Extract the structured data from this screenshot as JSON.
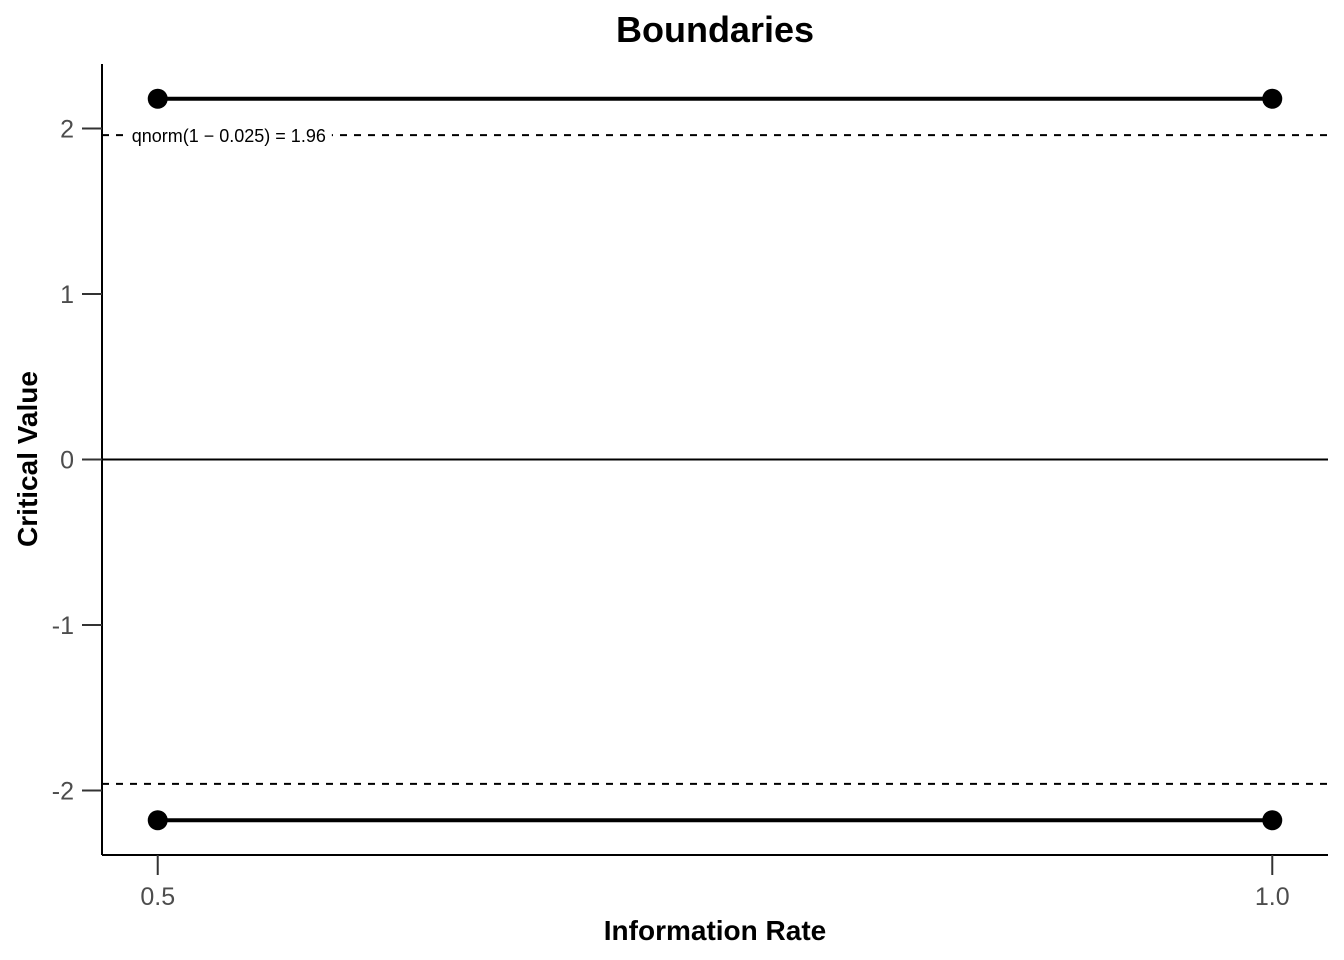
{
  "chart_data": {
    "type": "line",
    "title": "Boundaries",
    "xlabel": "Information Rate",
    "ylabel": "Critical Value",
    "x": [
      0.5,
      1.0
    ],
    "x_tick_labels": [
      "0.5",
      "1.0"
    ],
    "y_ticks": [
      -2,
      -1,
      0,
      1,
      2
    ],
    "y_tick_labels": [
      "-2",
      "-1",
      "0",
      "1",
      "2"
    ],
    "xlim": [
      0.475,
      1.025
    ],
    "ylim": [
      -2.39,
      2.39
    ],
    "series": [
      {
        "values": [
          2.18,
          2.18
        ]
      },
      {
        "values": [
          -2.18,
          -2.18
        ]
      }
    ],
    "reference_lines": {
      "dashed": [
        1.96,
        -1.96
      ],
      "solid": [
        0
      ]
    },
    "annotation": {
      "text": "qnorm(1 − 0.025) = 1.96",
      "x": 0.5,
      "y": 1.96
    },
    "grid": false,
    "legend": "none"
  }
}
